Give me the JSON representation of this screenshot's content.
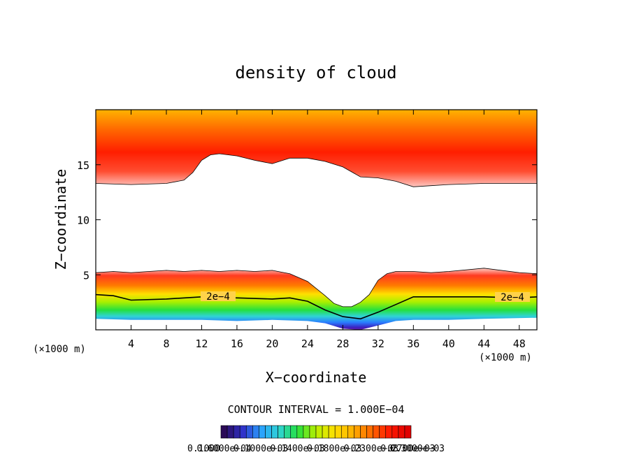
{
  "chart_data": {
    "type": "heatmap",
    "title": "density of cloud",
    "xlabel": "X−coordinate",
    "ylabel": "Z−coordinate",
    "x_unit_left": "(×1000 m)",
    "x_unit_right": "(×1000 m)",
    "xlim": [
      0,
      50
    ],
    "ylim": [
      0,
      20
    ],
    "x_ticks": [
      4,
      8,
      12,
      16,
      20,
      24,
      28,
      32,
      36,
      40,
      44,
      48
    ],
    "y_ticks": [
      5,
      10,
      15
    ],
    "contour_interval_text": "CONTOUR INTERVAL = 1.000E−04",
    "contour_labels": [
      "2e−4",
      "2e−4"
    ],
    "colorbar_tick_labels": [
      "0.1000",
      "0.6000e−04",
      "0.1000e−03",
      "0.1400e−03",
      "0.1800e−03",
      "0.2300e−03",
      "0.2700e−03",
      "0.3000e−03"
    ],
    "colormap": [
      "#2b0a57",
      "#3030c8",
      "#2aa0ff",
      "#2fd4d4",
      "#24e040",
      "#b8f000",
      "#ffe000",
      "#ffb000",
      "#ff6a00",
      "#ff1a00",
      "#e00000"
    ],
    "colorbar_n": 30,
    "upper_cloud_bottom_boundary": [
      [
        0,
        13.3
      ],
      [
        4,
        13.2
      ],
      [
        8,
        13.3
      ],
      [
        10,
        13.6
      ],
      [
        11,
        14.3
      ],
      [
        12,
        15.4
      ],
      [
        13,
        15.9
      ],
      [
        14,
        16.0
      ],
      [
        16,
        15.8
      ],
      [
        18,
        15.4
      ],
      [
        20,
        15.1
      ],
      [
        22,
        15.6
      ],
      [
        24,
        15.6
      ],
      [
        26,
        15.3
      ],
      [
        28,
        14.8
      ],
      [
        30,
        13.9
      ],
      [
        32,
        13.8
      ],
      [
        34,
        13.5
      ],
      [
        36,
        13.0
      ],
      [
        38,
        13.1
      ],
      [
        40,
        13.2
      ],
      [
        44,
        13.3
      ],
      [
        50,
        13.3
      ]
    ],
    "lower_cloud_top_boundary": [
      [
        0,
        5.2
      ],
      [
        2,
        5.3
      ],
      [
        4,
        5.2
      ],
      [
        6,
        5.3
      ],
      [
        8,
        5.4
      ],
      [
        10,
        5.3
      ],
      [
        12,
        5.4
      ],
      [
        14,
        5.3
      ],
      [
        16,
        5.4
      ],
      [
        18,
        5.3
      ],
      [
        20,
        5.4
      ],
      [
        22,
        5.1
      ],
      [
        24,
        4.4
      ],
      [
        26,
        3.1
      ],
      [
        27,
        2.4
      ],
      [
        28,
        2.1
      ],
      [
        29,
        2.1
      ],
      [
        30,
        2.5
      ],
      [
        31,
        3.2
      ],
      [
        32,
        4.5
      ],
      [
        33,
        5.1
      ],
      [
        34,
        5.3
      ],
      [
        36,
        5.3
      ],
      [
        38,
        5.2
      ],
      [
        40,
        5.3
      ],
      [
        44,
        5.6
      ],
      [
        48,
        5.2
      ],
      [
        50,
        5.1
      ]
    ],
    "lower_cloud_bottom_boundary": [
      [
        0,
        1.0
      ],
      [
        4,
        0.9
      ],
      [
        8,
        0.9
      ],
      [
        12,
        0.9
      ],
      [
        16,
        0.8
      ],
      [
        20,
        0.9
      ],
      [
        24,
        0.8
      ],
      [
        26,
        0.6
      ],
      [
        28,
        0.1
      ],
      [
        30,
        0.0
      ],
      [
        32,
        0.4
      ],
      [
        34,
        0.8
      ],
      [
        36,
        0.9
      ],
      [
        40,
        0.9
      ],
      [
        44,
        1.0
      ],
      [
        50,
        1.1
      ]
    ],
    "contour_2e4": [
      [
        0,
        3.2
      ],
      [
        2,
        3.1
      ],
      [
        4,
        2.7
      ],
      [
        8,
        2.8
      ],
      [
        12,
        3.0
      ],
      [
        16,
        2.9
      ],
      [
        20,
        2.8
      ],
      [
        22,
        2.9
      ],
      [
        24,
        2.6
      ],
      [
        26,
        1.8
      ],
      [
        28,
        1.2
      ],
      [
        30,
        1.0
      ],
      [
        32,
        1.6
      ],
      [
        34,
        2.3
      ],
      [
        36,
        3.0
      ],
      [
        40,
        3.0
      ],
      [
        44,
        3.0
      ],
      [
        48,
        2.9
      ],
      [
        50,
        3.0
      ]
    ]
  }
}
